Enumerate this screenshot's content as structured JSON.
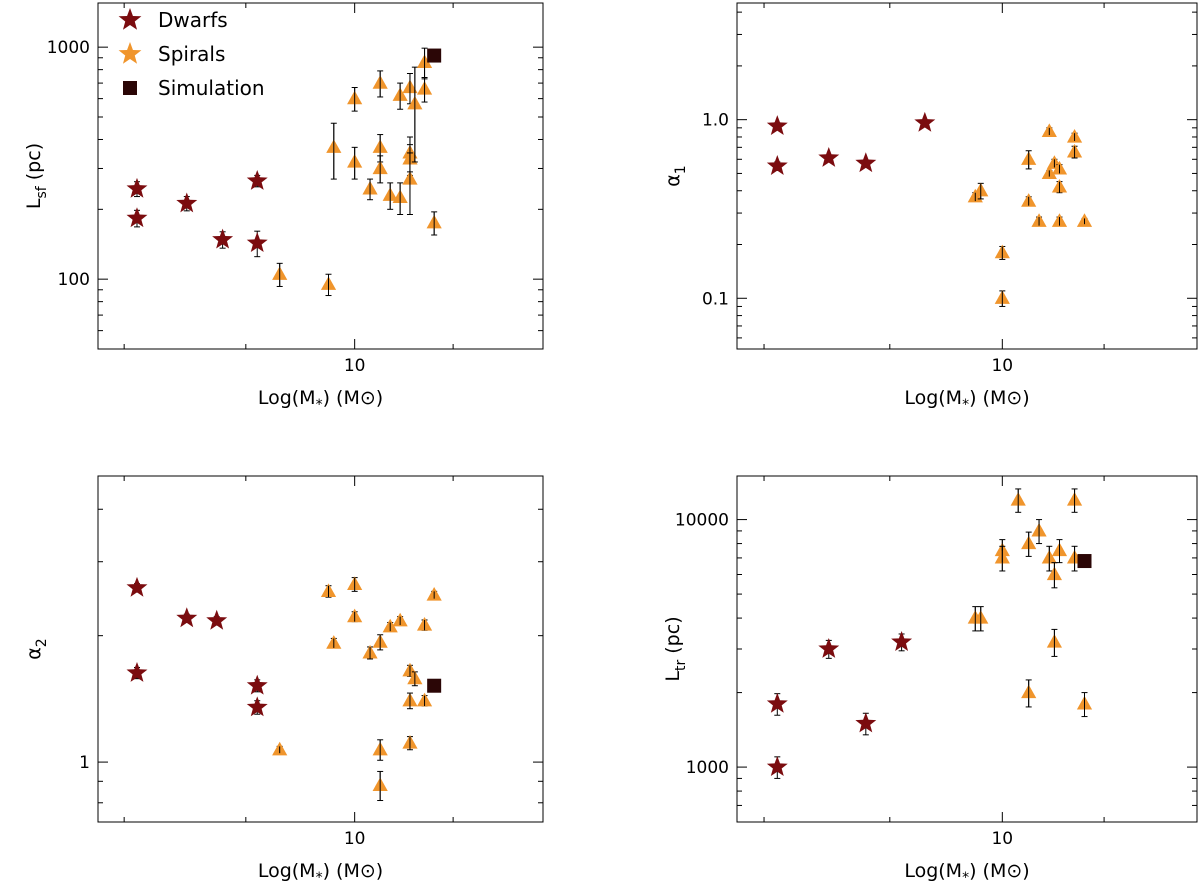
{
  "colors": {
    "dwarfs": "#7b0c0f",
    "spirals": "#f0952c",
    "simulation": "#2b0606",
    "axis": "#000000"
  },
  "legend": [
    {
      "label": "Dwarfs",
      "marker": "star",
      "color": "#7b0c0f"
    },
    {
      "label": "Spirals",
      "marker": "star",
      "color": "#f0952c"
    },
    {
      "label": "Simulation",
      "marker": "square",
      "color": "#2b0606"
    }
  ],
  "chart_data": [
    {
      "type": "scatter",
      "panel": "top-left",
      "xlabel": "Log(M*) (M⊙)",
      "ylabel": "Lsf (pc)",
      "xscale": "log",
      "yscale": "log",
      "xlim": [
        7.8,
        12.0
      ],
      "ylim": [
        50,
        1550
      ],
      "x_ticklabels": [
        "10"
      ],
      "y_ticklabels": [
        "100",
        "1000"
      ],
      "legend_position": "top-left",
      "series": [
        {
          "name": "Dwarfs",
          "points": [
            {
              "x": 8.1,
              "y": 245,
              "err": 18
            },
            {
              "x": 8.1,
              "y": 183,
              "err": 15
            },
            {
              "x": 8.5,
              "y": 212,
              "err": 15
            },
            {
              "x": 8.8,
              "y": 148,
              "err": 12
            },
            {
              "x": 9.1,
              "y": 265,
              "err": 15
            },
            {
              "x": 9.1,
              "y": 143,
              "err": 18
            }
          ]
        },
        {
          "name": "Spirals",
          "points": [
            {
              "x": 9.3,
              "y": 105,
              "err": 12
            },
            {
              "x": 9.75,
              "y": 95,
              "err": 10
            },
            {
              "x": 9.8,
              "y": 370,
              "err": 100
            },
            {
              "x": 10.0,
              "y": 320,
              "err": 50
            },
            {
              "x": 10.0,
              "y": 600,
              "err": 70
            },
            {
              "x": 10.15,
              "y": 245,
              "err": 25
            },
            {
              "x": 10.25,
              "y": 370,
              "err": 50
            },
            {
              "x": 10.25,
              "y": 700,
              "err": 90
            },
            {
              "x": 10.25,
              "y": 300,
              "err": 40
            },
            {
              "x": 10.35,
              "y": 230,
              "err": 30
            },
            {
              "x": 10.45,
              "y": 225,
              "err": 35
            },
            {
              "x": 10.45,
              "y": 620,
              "err": 80
            },
            {
              "x": 10.55,
              "y": 350,
              "err": 60
            },
            {
              "x": 10.55,
              "y": 330,
              "err": 50
            },
            {
              "x": 10.55,
              "y": 270,
              "err": 80
            },
            {
              "x": 10.55,
              "y": 670,
              "err": 100
            },
            {
              "x": 10.6,
              "y": 570,
              "err": 250
            },
            {
              "x": 10.7,
              "y": 660,
              "err": 80
            },
            {
              "x": 10.7,
              "y": 860,
              "err": 130
            },
            {
              "x": 10.8,
              "y": 175,
              "err": 20
            }
          ]
        },
        {
          "name": "Simulation",
          "points": [
            {
              "x": 10.8,
              "y": 920,
              "err": 0
            }
          ]
        }
      ]
    },
    {
      "type": "scatter",
      "panel": "top-right",
      "xlabel": "Log(M*) (M⊙)",
      "ylabel": "α1",
      "xscale": "log",
      "yscale": "log",
      "xlim": [
        7.8,
        12.0
      ],
      "ylim": [
        0.052,
        4.5
      ],
      "x_ticklabels": [
        "10"
      ],
      "y_ticklabels": [
        "0.1",
        "1.0"
      ],
      "series": [
        {
          "name": "Dwarfs",
          "points": [
            {
              "x": 8.1,
              "y": 0.92,
              "err": 0.04
            },
            {
              "x": 8.1,
              "y": 0.55,
              "err": 0.03
            },
            {
              "x": 8.5,
              "y": 0.61,
              "err": 0.02
            },
            {
              "x": 8.8,
              "y": 0.57,
              "err": 0.02
            },
            {
              "x": 9.3,
              "y": 0.96,
              "err": 0.03
            }
          ]
        },
        {
          "name": "Spirals",
          "points": [
            {
              "x": 9.75,
              "y": 0.37,
              "err": 0.02
            },
            {
              "x": 9.8,
              "y": 0.4,
              "err": 0.04
            },
            {
              "x": 10.0,
              "y": 0.18,
              "err": 0.015
            },
            {
              "x": 10.0,
              "y": 0.1,
              "err": 0.01
            },
            {
              "x": 10.25,
              "y": 0.6,
              "err": 0.07
            },
            {
              "x": 10.25,
              "y": 0.35,
              "err": 0.02
            },
            {
              "x": 10.35,
              "y": 0.27,
              "err": 0.015
            },
            {
              "x": 10.45,
              "y": 0.5,
              "err": 0.02
            },
            {
              "x": 10.45,
              "y": 0.86,
              "err": 0.04
            },
            {
              "x": 10.5,
              "y": 0.57,
              "err": 0.03
            },
            {
              "x": 10.55,
              "y": 0.53,
              "err": 0.03
            },
            {
              "x": 10.55,
              "y": 0.42,
              "err": 0.03
            },
            {
              "x": 10.55,
              "y": 0.27,
              "err": 0.015
            },
            {
              "x": 10.7,
              "y": 0.8,
              "err": 0.04
            },
            {
              "x": 10.7,
              "y": 0.66,
              "err": 0.05
            },
            {
              "x": 10.8,
              "y": 0.27,
              "err": 0.01
            }
          ]
        }
      ]
    },
    {
      "type": "scatter",
      "panel": "bottom-left",
      "xlabel": "Log(M*) (M⊙)",
      "ylabel": "α2",
      "xscale": "log",
      "yscale": "log",
      "xlim": [
        7.8,
        12.0
      ],
      "ylim": [
        0.72,
        4.8
      ],
      "x_ticklabels": [
        "10"
      ],
      "y_ticklabels": [
        "1"
      ],
      "series": [
        {
          "name": "Dwarfs",
          "points": [
            {
              "x": 8.1,
              "y": 2.6,
              "err": 0.06
            },
            {
              "x": 8.1,
              "y": 1.63,
              "err": 0.05
            },
            {
              "x": 8.5,
              "y": 2.2,
              "err": 0.05
            },
            {
              "x": 8.75,
              "y": 2.17,
              "err": 0.05
            },
            {
              "x": 9.1,
              "y": 1.52,
              "err": 0.05
            },
            {
              "x": 9.1,
              "y": 1.35,
              "err": 0.05
            }
          ]
        },
        {
          "name": "Spirals",
          "points": [
            {
              "x": 9.3,
              "y": 1.07,
              "err": 0.02
            },
            {
              "x": 9.75,
              "y": 2.55,
              "err": 0.08
            },
            {
              "x": 9.8,
              "y": 1.92,
              "err": 0.05
            },
            {
              "x": 10.0,
              "y": 2.65,
              "err": 0.1
            },
            {
              "x": 10.0,
              "y": 2.22,
              "err": 0.06
            },
            {
              "x": 10.15,
              "y": 1.82,
              "err": 0.06
            },
            {
              "x": 10.25,
              "y": 1.93,
              "err": 0.08
            },
            {
              "x": 10.25,
              "y": 1.07,
              "err": 0.06
            },
            {
              "x": 10.25,
              "y": 0.88,
              "err": 0.07
            },
            {
              "x": 10.35,
              "y": 2.1,
              "err": 0.05
            },
            {
              "x": 10.45,
              "y": 2.17,
              "err": 0.05
            },
            {
              "x": 10.55,
              "y": 1.65,
              "err": 0.05
            },
            {
              "x": 10.55,
              "y": 1.4,
              "err": 0.06
            },
            {
              "x": 10.55,
              "y": 1.11,
              "err": 0.04
            },
            {
              "x": 10.6,
              "y": 1.58,
              "err": 0.06
            },
            {
              "x": 10.7,
              "y": 1.4,
              "err": 0.04
            },
            {
              "x": 10.7,
              "y": 2.12,
              "err": 0.06
            },
            {
              "x": 10.8,
              "y": 2.5,
              "err": 0.05
            }
          ]
        },
        {
          "name": "Simulation",
          "points": [
            {
              "x": 10.8,
              "y": 1.52,
              "err": 0
            }
          ]
        }
      ]
    },
    {
      "type": "scatter",
      "panel": "bottom-right",
      "xlabel": "Log(M*) (M⊙)",
      "ylabel": "Ltr (pc)",
      "xscale": "log",
      "yscale": "log",
      "xlim": [
        7.8,
        12.0
      ],
      "ylim": [
        600,
        15000
      ],
      "x_ticklabels": [
        "10"
      ],
      "y_ticklabels": [
        "1000",
        "10000"
      ],
      "series": [
        {
          "name": "Dwarfs",
          "points": [
            {
              "x": 8.1,
              "y": 1800,
              "err": 180
            },
            {
              "x": 8.1,
              "y": 1000,
              "err": 100
            },
            {
              "x": 8.5,
              "y": 3000,
              "err": 250
            },
            {
              "x": 8.8,
              "y": 1500,
              "err": 150
            },
            {
              "x": 9.1,
              "y": 3200,
              "err": 250
            }
          ]
        },
        {
          "name": "Spirals",
          "points": [
            {
              "x": 9.75,
              "y": 4000,
              "err": 450
            },
            {
              "x": 9.8,
              "y": 4000,
              "err": 450
            },
            {
              "x": 10.0,
              "y": 7500,
              "err": 800
            },
            {
              "x": 10.0,
              "y": 7000,
              "err": 800
            },
            {
              "x": 10.15,
              "y": 12000,
              "err": 1300
            },
            {
              "x": 10.25,
              "y": 8000,
              "err": 900
            },
            {
              "x": 10.25,
              "y": 2000,
              "err": 250
            },
            {
              "x": 10.35,
              "y": 9000,
              "err": 1000
            },
            {
              "x": 10.45,
              "y": 7000,
              "err": 800
            },
            {
              "x": 10.5,
              "y": 6000,
              "err": 700
            },
            {
              "x": 10.5,
              "y": 3200,
              "err": 400
            },
            {
              "x": 10.55,
              "y": 7500,
              "err": 800
            },
            {
              "x": 10.7,
              "y": 12000,
              "err": 1300
            },
            {
              "x": 10.7,
              "y": 7000,
              "err": 800
            },
            {
              "x": 10.8,
              "y": 1800,
              "err": 200
            }
          ]
        },
        {
          "name": "Simulation",
          "points": [
            {
              "x": 10.8,
              "y": 6800,
              "err": 0
            }
          ]
        }
      ]
    }
  ]
}
